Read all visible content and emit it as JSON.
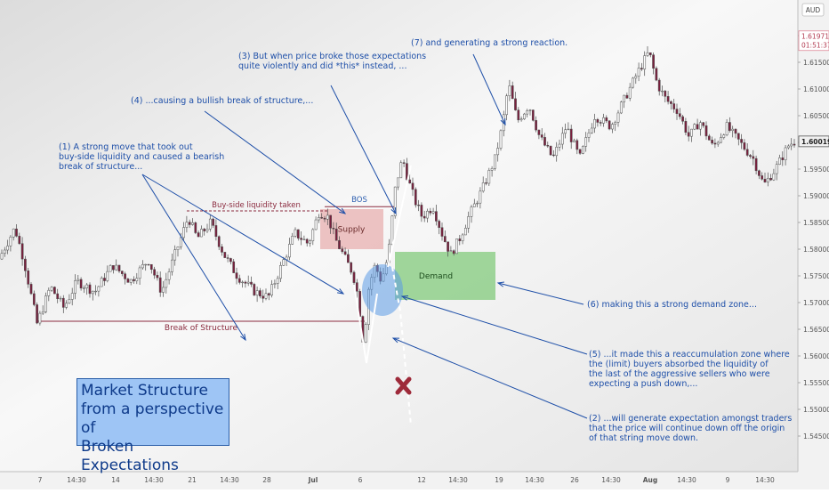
{
  "chart_data": {
    "type": "candlestick",
    "instrument_currency": "AUD",
    "price_axis": {
      "min": 1.54,
      "max": 1.625,
      "ticks": [
        "1.62000",
        "1.61500",
        "1.61000",
        "1.60500",
        "1.60000",
        "1.59500",
        "1.59000",
        "1.58500",
        "1.58000",
        "1.57500",
        "1.57000",
        "1.56500",
        "1.56000",
        "1.55500",
        "1.55000",
        "1.54500"
      ],
      "highlight_high": {
        "label": "1.61971",
        "sub": "01:51:37"
      },
      "highlight_last": {
        "label": "1.60019"
      }
    },
    "time_axis": {
      "ticks": [
        "7",
        "14:30",
        "14",
        "14:30",
        "21",
        "14:30",
        "28",
        "Jul",
        "6",
        "12",
        "14:30",
        "19",
        "14:30",
        "26",
        "14:30",
        "Aug",
        "14:30",
        "9",
        "14:30"
      ]
    },
    "price_path_key_points": [
      [
        0,
        1.5775
      ],
      [
        20,
        1.584
      ],
      [
        30,
        1.578
      ],
      [
        45,
        1.566
      ],
      [
        60,
        1.573
      ],
      [
        75,
        1.569
      ],
      [
        90,
        1.574
      ],
      [
        110,
        1.572
      ],
      [
        130,
        1.577
      ],
      [
        150,
        1.574
      ],
      [
        170,
        1.578
      ],
      [
        185,
        1.572
      ],
      [
        200,
        1.579
      ],
      [
        215,
        1.586
      ],
      [
        225,
        1.582
      ],
      [
        240,
        1.585
      ],
      [
        255,
        1.579
      ],
      [
        270,
        1.575
      ],
      [
        290,
        1.572
      ],
      [
        305,
        1.571
      ],
      [
        320,
        1.577
      ],
      [
        335,
        1.583
      ],
      [
        350,
        1.581
      ],
      [
        362,
        1.587
      ],
      [
        372,
        1.586
      ],
      [
        380,
        1.582
      ],
      [
        392,
        1.578
      ],
      [
        400,
        1.5755
      ],
      [
        406,
        1.571
      ],
      [
        412,
        1.562
      ],
      [
        418,
        1.573
      ],
      [
        425,
        1.577
      ],
      [
        432,
        1.574
      ],
      [
        440,
        1.579
      ],
      [
        448,
        1.592
      ],
      [
        456,
        1.597
      ],
      [
        462,
        1.593
      ],
      [
        470,
        1.589
      ],
      [
        478,
        1.586
      ],
      [
        490,
        1.588
      ],
      [
        500,
        1.583
      ],
      [
        510,
        1.579
      ],
      [
        520,
        1.582
      ],
      [
        530,
        1.586
      ],
      [
        545,
        1.591
      ],
      [
        560,
        1.597
      ],
      [
        568,
        1.603
      ],
      [
        575,
        1.611
      ],
      [
        585,
        1.604
      ],
      [
        598,
        1.607
      ],
      [
        610,
        1.601
      ],
      [
        625,
        1.597
      ],
      [
        640,
        1.603
      ],
      [
        655,
        1.597
      ],
      [
        672,
        1.605
      ],
      [
        690,
        1.603
      ],
      [
        705,
        1.608
      ],
      [
        720,
        1.613
      ],
      [
        733,
        1.617
      ],
      [
        742,
        1.611
      ],
      [
        752,
        1.608
      ],
      [
        765,
        1.606
      ],
      [
        778,
        1.601
      ],
      [
        790,
        1.604
      ],
      [
        805,
        1.599
      ],
      [
        820,
        1.603
      ],
      [
        835,
        1.6
      ],
      [
        850,
        1.597
      ],
      [
        862,
        1.592
      ],
      [
        875,
        1.595
      ],
      [
        890,
        1.5995
      ],
      [
        897,
        1.6002
      ]
    ],
    "zones": {
      "supply": {
        "label": "Supply",
        "top": 1.5875,
        "bottom": 1.58
      },
      "demand": {
        "label": "Demand",
        "top": 1.5795,
        "bottom": 1.5705
      }
    },
    "levels": {
      "bos": {
        "label": "BOS",
        "price": 1.5883
      },
      "liquidity": {
        "label": "Buy-side liquidity taken",
        "price": 1.5875
      },
      "structure_break": {
        "label": "Break of Structure",
        "price": 1.5665
      }
    },
    "annotations": [
      {
        "id": "ann1",
        "lines": [
          "(1) A strong move that took out",
          "buy-side liquidity and caused a bearish",
          "break of structure..."
        ]
      },
      {
        "id": "ann4",
        "lines": [
          "(4) ...causing a bullish break of structure,..."
        ]
      },
      {
        "id": "ann3",
        "lines": [
          "(3) But when price broke those expectations",
          "quite violently and did *this* instead, ..."
        ]
      },
      {
        "id": "ann7",
        "lines": [
          "(7) and generating a strong reaction."
        ]
      },
      {
        "id": "ann6",
        "lines": [
          "(6) making this a strong demand zone..."
        ]
      },
      {
        "id": "ann5",
        "lines": [
          "(5) ...it made this a reaccumulation zone where",
          "the (limit) buyers absorbed the liquidity of",
          "the last of the aggressive sellers who were",
          "expecting a push down,..."
        ]
      },
      {
        "id": "ann2",
        "lines": [
          "(2) ...will generate expectation amongst traders",
          "that the price will continue down off the origin",
          "of that string move down."
        ]
      }
    ],
    "title_lines": [
      "Market Structure",
      "from a perspective of",
      "Broken Expectations"
    ],
    "colors": {
      "bull": "#ffffff",
      "bear": "#7a1f3d",
      "supply": "#e8b4b4",
      "demand": "#8fcf8a",
      "annotation": "#1e4fa8",
      "level": "#8b2b3f",
      "bos": "#2e5fb0"
    }
  }
}
